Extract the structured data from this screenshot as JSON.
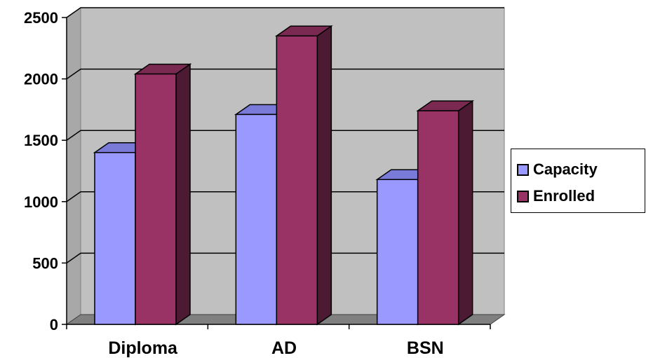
{
  "chart_data": {
    "type": "bar",
    "title": "",
    "xlabel": "",
    "ylabel": "",
    "categories": [
      "Diploma",
      "AD",
      "BSN"
    ],
    "series": [
      {
        "name": "Capacity",
        "values": [
          1400,
          1710,
          1180
        ],
        "color": "#9999ff",
        "side_color": "#5a5ab0",
        "top_color": "#7a7ad8"
      },
      {
        "name": "Enrolled",
        "values": [
          2040,
          2350,
          1740
        ],
        "color": "#993366",
        "side_color": "#4d1a33",
        "top_color": "#7a2950"
      }
    ],
    "yticks": [
      "0",
      "500",
      "1000",
      "1500",
      "2000",
      "2500"
    ],
    "ylim": [
      0,
      2500
    ],
    "grid": true,
    "plot_background": "#c0c0c0",
    "legend_position": "right"
  }
}
